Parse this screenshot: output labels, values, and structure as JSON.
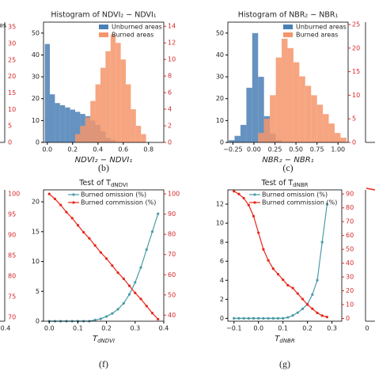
{
  "chart_data": [
    {
      "type": "histogram",
      "label": "(b)",
      "title": "Histogram of NDVI₂ − NDVI₁",
      "xlabel": "NDVI₂ − NDVI₁",
      "bins": [
        -0.02,
        0.02,
        0.06,
        0.1,
        0.14,
        0.18,
        0.22,
        0.26,
        0.3,
        0.34,
        0.38,
        0.42,
        0.46,
        0.5,
        0.54,
        0.58,
        0.62,
        0.66,
        0.7,
        0.74,
        0.78,
        0.82,
        0.86
      ],
      "series": [
        {
          "name": "Unburned areas",
          "color": "#4a7fb5",
          "values": [
            45,
            22,
            18,
            17,
            16,
            15,
            14,
            13,
            12,
            10,
            8,
            5,
            2,
            1,
            0,
            0,
            0,
            0,
            0,
            0,
            0,
            0
          ]
        },
        {
          "name": "Burned areas",
          "color": "#f4956a",
          "axis": "y2",
          "values": [
            0,
            0,
            0,
            0,
            0,
            0,
            1,
            2,
            3,
            5,
            7,
            9,
            11,
            13,
            12,
            10,
            7,
            4,
            2,
            1,
            0,
            0
          ]
        }
      ],
      "xlim": [
        -0.03,
        0.92
      ],
      "xticks": [
        {
          "value": 0,
          "label": "0.0"
        },
        0.2,
        0.4,
        0.6,
        0.8
      ],
      "ylim": [
        0,
        55
      ],
      "yticks": [
        0,
        10,
        20,
        30,
        40,
        50
      ],
      "y2lim": [
        0,
        14.5
      ],
      "y2ticks": [
        0,
        2,
        4,
        6,
        8,
        10,
        12,
        14
      ],
      "legend": "upper right"
    },
    {
      "type": "histogram",
      "label": "(c)",
      "title": "Histogram of NBR₂ − NBR₁",
      "xlabel": "NBR₂ − NBR₁",
      "bins": [
        -0.3,
        -0.23,
        -0.16,
        -0.09,
        -0.02,
        0.05,
        0.12,
        0.19,
        0.26,
        0.33,
        0.4,
        0.47,
        0.54,
        0.61,
        0.68,
        0.75,
        0.82,
        0.89,
        0.96,
        1.03,
        1.1
      ],
      "series": [
        {
          "name": "Unburned areas",
          "color": "#4a7fb5",
          "values": [
            1,
            3,
            8,
            25,
            50,
            30,
            12,
            4,
            1,
            0,
            0,
            0,
            0,
            0,
            0,
            0,
            0,
            0,
            0,
            0
          ]
        },
        {
          "name": "Burned areas",
          "color": "#f4956a",
          "axis": "y2",
          "values": [
            0,
            0,
            0,
            0,
            0,
            2,
            5,
            10,
            18,
            22,
            20,
            17,
            14,
            12,
            10,
            8,
            6,
            4,
            2,
            1
          ]
        }
      ],
      "xlim": [
        -0.31,
        1.12
      ],
      "xticks": [
        {
          "value": -0.25,
          "label": "−0.25"
        },
        {
          "value": 0,
          "label": "0.00"
        },
        {
          "value": 0.25,
          "label": "0.25"
        },
        {
          "value": 0.5,
          "label": "0.50"
        },
        {
          "value": 0.75,
          "label": "0.75"
        },
        {
          "value": 1,
          "label": "1.00"
        }
      ],
      "ylim": [
        0,
        55
      ],
      "yticks": [
        0,
        10,
        20,
        30,
        40,
        50
      ],
      "y2lim": [
        0,
        25.5
      ],
      "y2ticks": [
        0,
        5,
        10,
        15,
        20,
        25
      ],
      "legend": "upper right"
    },
    {
      "type": "line",
      "label": "(f)",
      "title": {
        "main": "Test of T",
        "sub": "dNDVI"
      },
      "xlabel": {
        "main": "T",
        "sub": "dNDVI"
      },
      "x": [
        0,
        0.02,
        0.04,
        0.06,
        0.08,
        0.1,
        0.12,
        0.14,
        0.16,
        0.18,
        0.2,
        0.22,
        0.24,
        0.26,
        0.28,
        0.3,
        0.32,
        0.34,
        0.36,
        0.38
      ],
      "series": [
        {
          "name": "Burned omission (%)",
          "color": "#4a9aa8",
          "values": [
            0,
            0,
            0,
            0,
            0,
            0,
            0,
            0,
            0.2,
            0.4,
            0.8,
            1.3,
            2,
            3,
            4.5,
            6.5,
            9,
            12,
            15,
            18
          ]
        },
        {
          "name": "Burned commission (%)",
          "color": "#e8261a",
          "axis": "y2",
          "values": [
            100,
            97.5,
            94.5,
            91,
            88,
            84.5,
            81,
            78,
            74.5,
            71,
            68,
            64.5,
            61,
            58,
            54.5,
            51,
            48,
            44.5,
            41,
            38
          ]
        }
      ],
      "xlim": [
        -0.02,
        0.4
      ],
      "xticks": [
        {
          "value": 0,
          "label": "0.0"
        },
        0.1,
        0.2,
        0.3,
        0.4
      ],
      "ylim": [
        0,
        22
      ],
      "yticks": [
        0,
        5,
        10,
        15,
        20
      ],
      "y2lim": [
        37,
        102
      ],
      "y2ticks": [
        40,
        50,
        60,
        70,
        80,
        90,
        100
      ],
      "legend": "upper center"
    },
    {
      "type": "line",
      "label": "(g)",
      "title": {
        "main": "Test of T",
        "sub": "dNBR"
      },
      "xlabel": {
        "main": "T",
        "sub": "dNBR"
      },
      "x": [
        -0.1,
        -0.08,
        -0.06,
        -0.04,
        -0.02,
        0,
        0.02,
        0.04,
        0.06,
        0.08,
        0.1,
        0.12,
        0.14,
        0.16,
        0.18,
        0.2,
        0.22,
        0.24,
        0.26,
        0.28
      ],
      "series": [
        {
          "name": "Burned omission (%)",
          "color": "#4a9aa8",
          "values": [
            0,
            0,
            0,
            0,
            0,
            0,
            0,
            0,
            0,
            0,
            0,
            0.1,
            0.3,
            0.6,
            1,
            1.5,
            2.5,
            4,
            8,
            12
          ]
        },
        {
          "name": "Burned commission (%)",
          "color": "#e8261a",
          "axis": "y2",
          "values": [
            92,
            90,
            87,
            82,
            74,
            62,
            50,
            42,
            36,
            32,
            28,
            24,
            22,
            18,
            14,
            10,
            7,
            4,
            2,
            1
          ]
        }
      ],
      "xlim": [
        -0.125,
        0.34
      ],
      "xticks": [
        {
          "value": -0.1,
          "label": "−0.1"
        },
        {
          "value": 0,
          "label": "0.0"
        },
        0.1,
        0.2,
        0.3
      ],
      "ylim": [
        -0.3,
        13.5
      ],
      "yticks": [
        0,
        2,
        4,
        6,
        8,
        10,
        12
      ],
      "y2lim": [
        -2,
        93
      ],
      "y2ticks": [
        0,
        10,
        20,
        30,
        40,
        50,
        60,
        70,
        80,
        90
      ],
      "legend": "upper center"
    }
  ],
  "fragments": [
    {
      "legend": "es",
      "y2lim": [
        0,
        36.5
      ],
      "y2ticks": [
        0,
        5,
        10,
        15,
        20,
        25,
        30,
        35
      ]
    },
    {
      "xtick": 0.4,
      "y2lim": [
        69,
        101
      ],
      "y2ticks": [
        70,
        75,
        80,
        85,
        90,
        95,
        100
      ]
    },
    {
      "xtick": 0
    }
  ]
}
